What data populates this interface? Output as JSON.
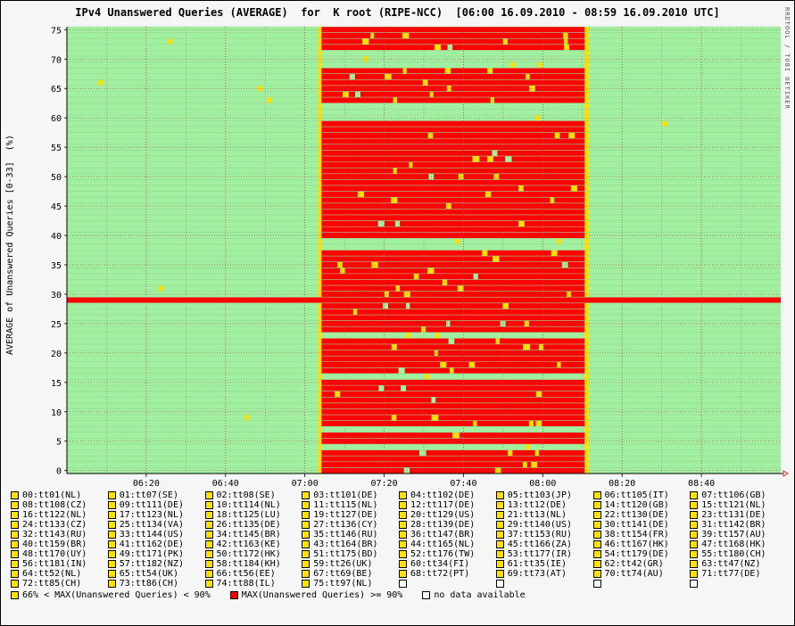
{
  "title": "IPv4 Unanswered Queries (AVERAGE)  for  K root (RIPE-NCC)  [06:00 16.09.2010 - 08:59 16.09.2010 UTC]",
  "side_text": "RRDTOOL / TOBI OETIKER",
  "chart_data": {
    "type": "heatmap",
    "ylabel": "AVERAGE of Unanswered Queries [0-33]  (%)",
    "xlabel": "",
    "x_ticks": [
      "06:20",
      "06:40",
      "07:00",
      "07:20",
      "07:40",
      "08:00",
      "08:20",
      "08:40"
    ],
    "x_range": [
      "06:00",
      "08:59"
    ],
    "y_ticks": [
      0,
      5,
      10,
      15,
      20,
      25,
      30,
      35,
      40,
      45,
      50,
      55,
      60,
      65,
      70,
      75
    ],
    "ylim": [
      0,
      76
    ],
    "grid": true,
    "colors": {
      "low": "#a0f0a0",
      "mid": "#ffe000",
      "high": "#ff0000",
      "none": "#ffffff"
    },
    "outage_window": [
      "07:04",
      "08:11"
    ],
    "always_high_rows": [
      29
    ],
    "mostly_ok_rows_during_outage": [
      4,
      7,
      16,
      23,
      38,
      39,
      60,
      61,
      62,
      69,
      70,
      71
    ],
    "legend_position": "bottom",
    "series": [
      "00:tt01(NL)",
      "01:tt07(SE)",
      "02:tt08(SE)",
      "03:tt101(DE)",
      "04:tt102(DE)",
      "05:tt103(JP)",
      "06:tt105(IT)",
      "07:tt106(GB)",
      "08:tt108(CZ)",
      "09:tt111(DE)",
      "10:tt114(NL)",
      "11:tt115(NL)",
      "12:tt117(DE)",
      "13:tt12(DE)",
      "14:tt120(GB)",
      "15:tt121(NL)",
      "16:tt122(NL)",
      "17:tt123(NL)",
      "18:tt125(LU)",
      "19:tt127(DE)",
      "20:tt129(US)",
      "21:tt13(NL)",
      "22:tt130(DE)",
      "23:tt131(DE)",
      "24:tt133(CZ)",
      "25:tt134(VA)",
      "26:tt135(DE)",
      "27:tt136(CY)",
      "28:tt139(DE)",
      "29:tt140(US)",
      "30:tt141(DE)",
      "31:tt142(BR)",
      "32:tt143(RU)",
      "33:tt144(US)",
      "34:tt145(BR)",
      "35:tt146(RU)",
      "36:tt147(BR)",
      "37:tt153(RU)",
      "38:tt154(FR)",
      "39:tt157(AU)",
      "40:tt159(BR)",
      "41:tt162(DE)",
      "42:tt163(KE)",
      "43:tt164(BR)",
      "44:tt165(NL)",
      "45:tt166(ZA)",
      "46:tt167(HK)",
      "47:tt168(HK)",
      "48:tt170(UY)",
      "49:tt171(PK)",
      "50:tt172(HK)",
      "51:tt175(BD)",
      "52:tt176(TW)",
      "53:tt177(IR)",
      "54:tt179(DE)",
      "55:tt180(CH)",
      "56:tt181(IN)",
      "57:tt182(NZ)",
      "58:tt184(KH)",
      "59:tt26(UK)",
      "60:tt34(FI)",
      "61:tt35(IE)",
      "62:tt42(GR)",
      "63:tt47(NZ)",
      "64:tt52(NL)",
      "65:tt54(UK)",
      "66:tt56(EE)",
      "67:tt69(BE)",
      "68:tt72(PT)",
      "69:tt73(AT)",
      "70:tt74(AU)",
      "71:tt77(DE)",
      "72:tt85(CH)",
      "73:tt86(CH)",
      "74:tt88(IL)",
      "75:tt97(NL)"
    ],
    "key": [
      {
        "label": "66% < MAX(Unanswered Queries) < 90%",
        "color": "#ffe000"
      },
      {
        "label": "MAX(Unanswered Queries) >= 90%",
        "color": "#ff0000"
      },
      {
        "label": "no data available",
        "color": "#ffffff"
      }
    ]
  }
}
